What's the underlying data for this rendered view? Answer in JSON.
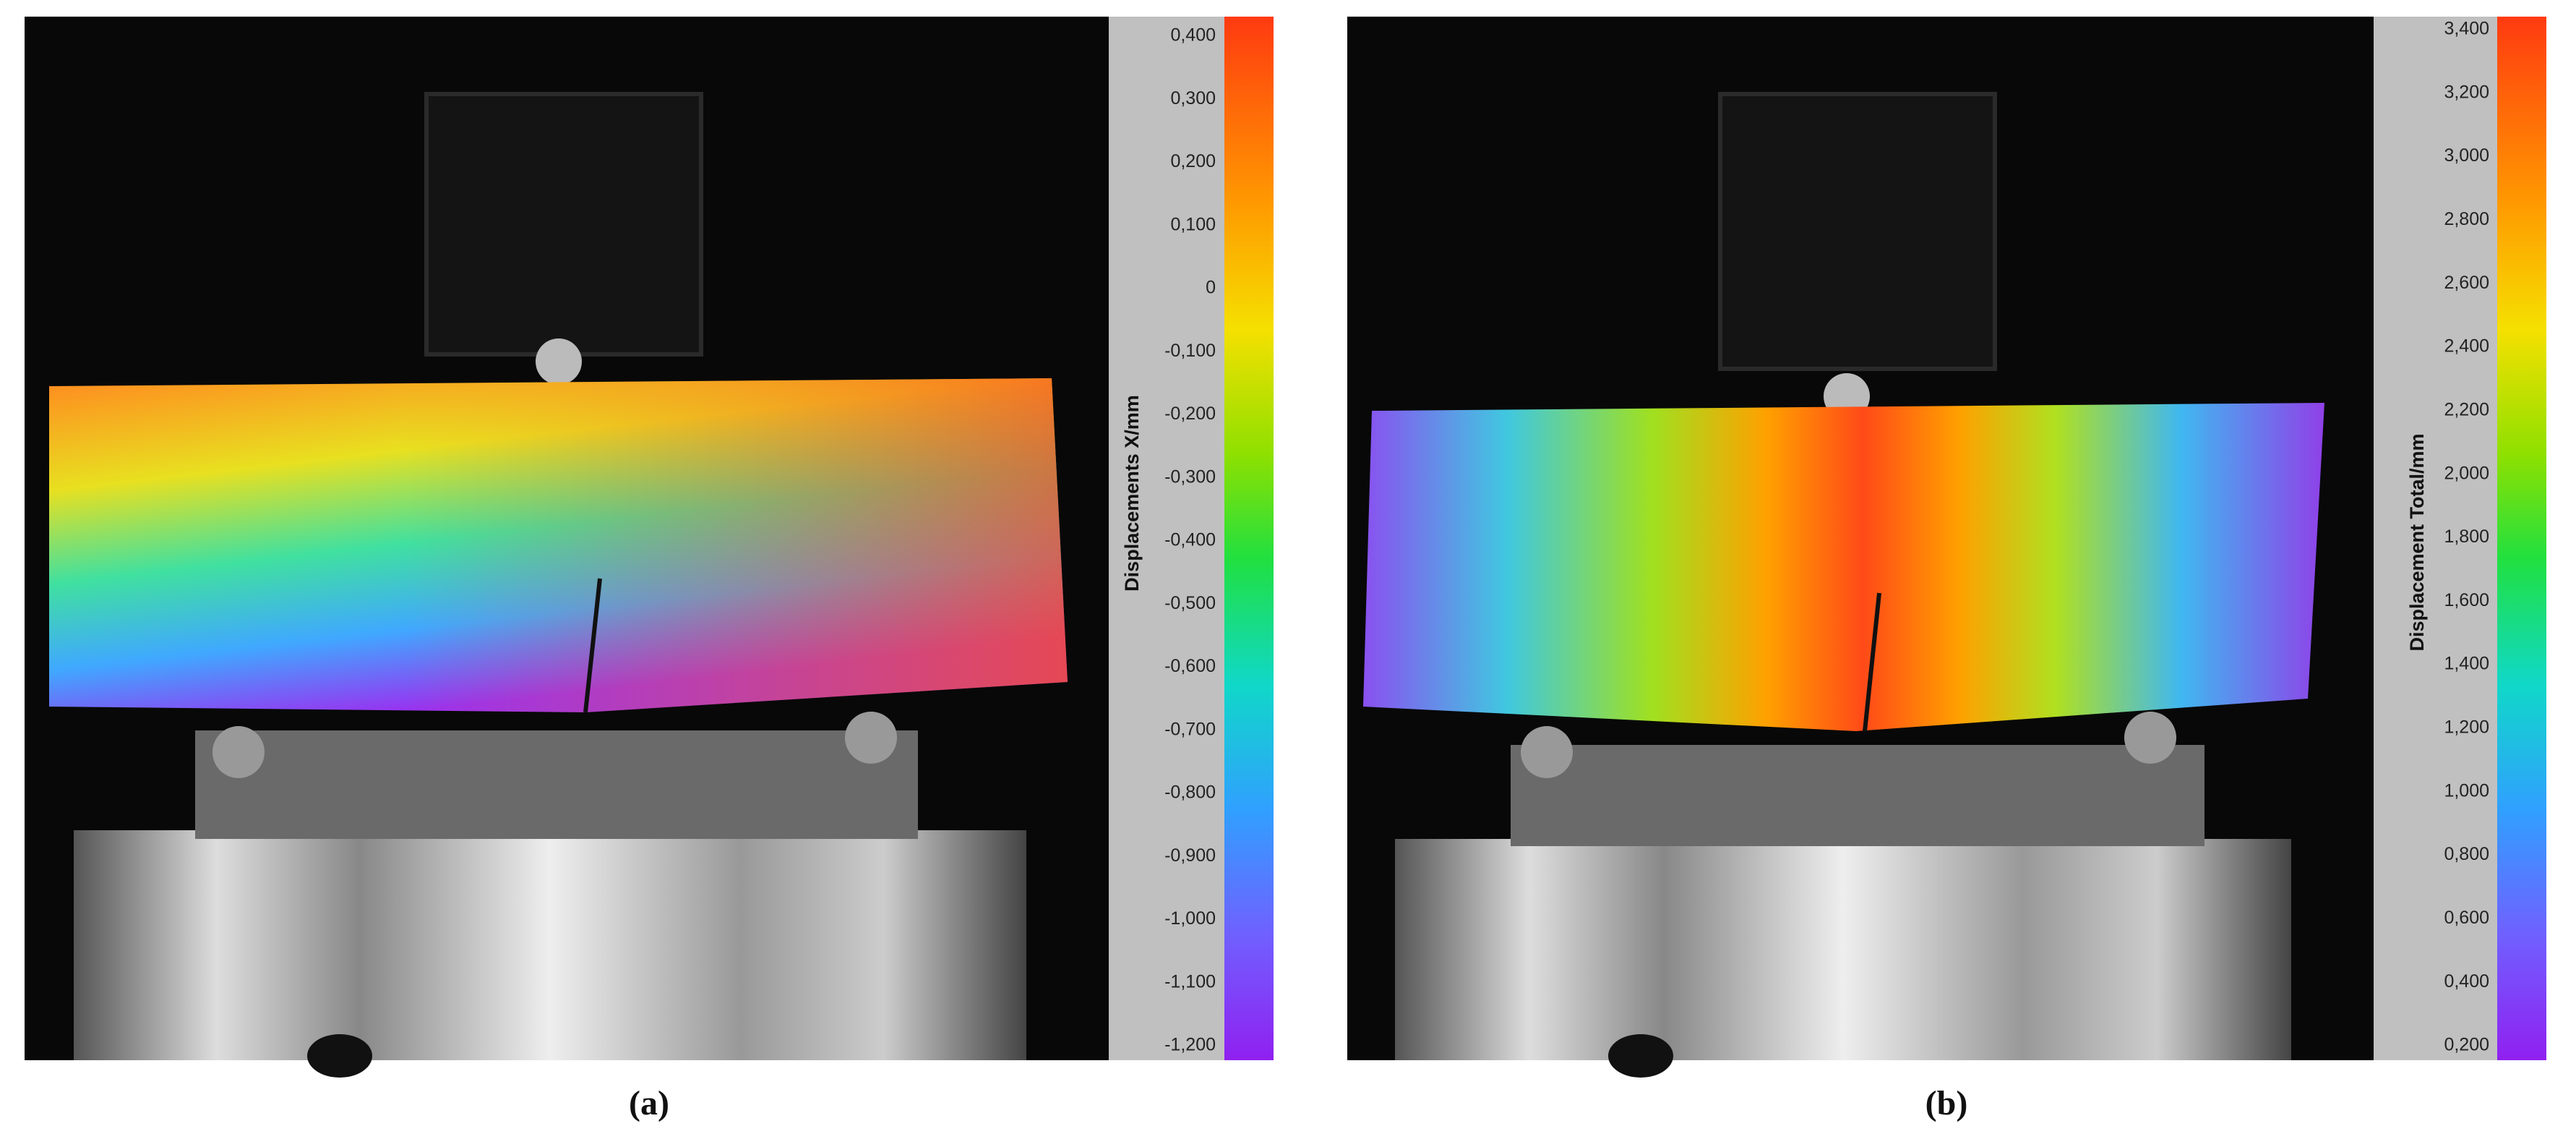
{
  "panels": [
    {
      "caption": "(a)",
      "colorbar": {
        "label": "Displacements X/mm",
        "ticks": [
          "0,400",
          "0,300",
          "0,200",
          "0,100",
          "0",
          "-0,100",
          "-0,200",
          "-0,300",
          "-0,400",
          "-0,500",
          "-0,600",
          "-0,700",
          "-0,800",
          "-0,900",
          "-1,000",
          "-1,100",
          "-1,200"
        ]
      }
    },
    {
      "caption": "(b)",
      "colorbar": {
        "label": "Displacement Total/mm",
        "ticks": [
          "3,400",
          "3,200",
          "3,000",
          "2,800",
          "2,600",
          "2,400",
          "2,200",
          "2,000",
          "1,800",
          "1,600",
          "1,400",
          "1,200",
          "1,000",
          "0,800",
          "0,600",
          "0,400",
          "0,200"
        ]
      }
    }
  ]
}
